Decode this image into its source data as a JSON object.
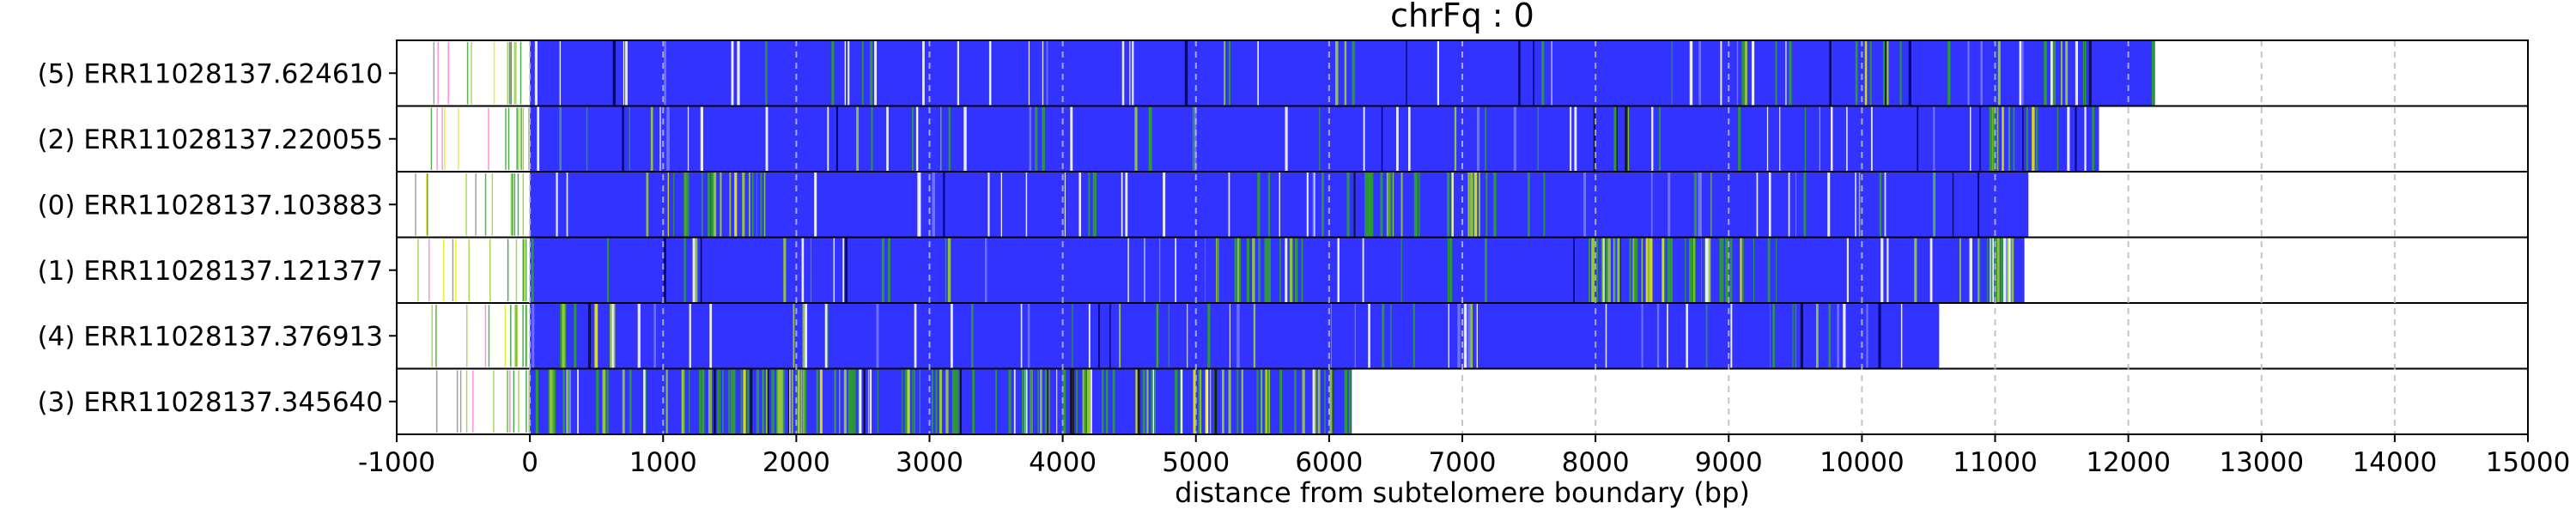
{
  "chart_data": {
    "type": "bar",
    "title": "chrFq : 0",
    "xlabel": "distance from subtelomere boundary (bp)",
    "ylabel": "",
    "xlim": [
      -1000,
      15000
    ],
    "xticks": [
      -1000,
      0,
      1000,
      2000,
      3000,
      4000,
      5000,
      6000,
      7000,
      8000,
      9000,
      10000,
      11000,
      12000,
      13000,
      14000,
      15000
    ],
    "grid": "vertical dashed",
    "colors": {
      "main": "#3333ff",
      "green": "#2ca02c",
      "lightgreen": "#9acd32",
      "yellow": "#e8e800",
      "white": "#ffffff",
      "pink": "#ff77cc",
      "grid": "#bbbbbb"
    },
    "series": [
      {
        "label": "(5) ERR11028137.624610",
        "start": 0,
        "end": 12200,
        "pre_start": -950,
        "hot": [
          [
            9950,
            10300
          ],
          [
            11350,
            11750
          ]
        ],
        "heavy": []
      },
      {
        "label": "(2) ERR11028137.220055",
        "start": 0,
        "end": 11780,
        "pre_start": -900,
        "hot": [
          [
            7900,
            8300
          ],
          [
            10900,
            11300
          ]
        ],
        "heavy": []
      },
      {
        "label": "(0) ERR11028137.103883",
        "start": 0,
        "end": 11250,
        "pre_start": -870,
        "hot": [
          [
            850,
            1800
          ],
          [
            6100,
            6700
          ],
          [
            6800,
            7300
          ]
        ],
        "heavy": [
          [
            6200,
            6500
          ],
          [
            6900,
            7200
          ]
        ]
      },
      {
        "label": "(1) ERR11028137.121377",
        "start": 0,
        "end": 11220,
        "pre_start": -950,
        "hot": [
          [
            5000,
            5800
          ],
          [
            7900,
            9400
          ],
          [
            10700,
            11200
          ]
        ],
        "heavy": [
          [
            8000,
            8400
          ],
          [
            8500,
            9100
          ],
          [
            10800,
            11100
          ]
        ]
      },
      {
        "label": "(4) ERR11028137.376913",
        "start": 0,
        "end": 10580,
        "pre_start": -920,
        "hot": [
          [
            200,
            700
          ],
          [
            9300,
            9600
          ]
        ],
        "heavy": []
      },
      {
        "label": "(3) ERR11028137.345640",
        "start": 0,
        "end": 6170,
        "pre_start": -950,
        "hot": [
          [
            0,
            6170
          ]
        ],
        "heavy": [
          [
            1500,
            2100
          ],
          [
            3600,
            4600
          ],
          [
            5300,
            5600
          ]
        ]
      }
    ]
  }
}
